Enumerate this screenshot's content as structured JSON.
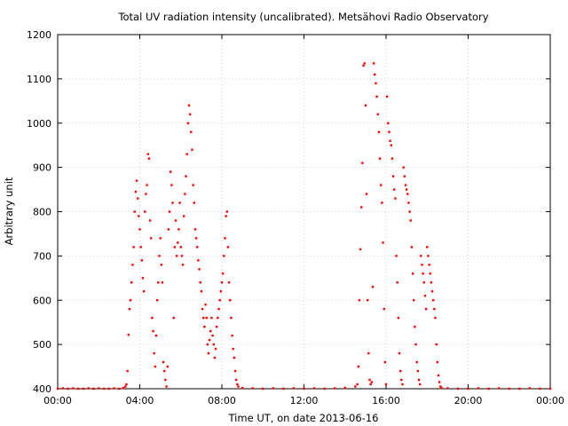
{
  "chart_data": {
    "type": "scatter",
    "title": "Total UV radiation intensity (uncalibrated). Metsähovi Radio Observatory",
    "xlabel": "Time UT, on date 2013-06-16",
    "ylabel": "Arbitrary unit",
    "x_unit": "hours UT",
    "xlim": [
      0,
      24
    ],
    "ylim": [
      400,
      1200
    ],
    "x_ticks": [
      0,
      4,
      8,
      12,
      16,
      20,
      24
    ],
    "x_tick_labels": [
      "00:00",
      "04:00",
      "08:00",
      "12:00",
      "16:00",
      "20:00",
      "00:00"
    ],
    "y_ticks": [
      400,
      500,
      600,
      700,
      800,
      900,
      1000,
      1100,
      1200
    ],
    "y_tick_labels": [
      "400",
      "500",
      "600",
      "700",
      "800",
      "900",
      "1000",
      "1100",
      "1200"
    ],
    "grid": true,
    "marker_color": "#ff0000",
    "series": [
      {
        "name": "",
        "points": [
          [
            0.0,
            400
          ],
          [
            0.25,
            401
          ],
          [
            0.5,
            400
          ],
          [
            0.75,
            401
          ],
          [
            1.0,
            400
          ],
          [
            1.25,
            400
          ],
          [
            1.5,
            401
          ],
          [
            1.75,
            400
          ],
          [
            2.0,
            401
          ],
          [
            2.25,
            400
          ],
          [
            2.5,
            400
          ],
          [
            2.75,
            401
          ],
          [
            3.0,
            400
          ],
          [
            3.2,
            402
          ],
          [
            3.3,
            405
          ],
          [
            3.35,
            410
          ],
          [
            3.4,
            440
          ],
          [
            3.45,
            522
          ],
          [
            3.5,
            580
          ],
          [
            3.55,
            600
          ],
          [
            3.6,
            640
          ],
          [
            3.65,
            680
          ],
          [
            3.7,
            720
          ],
          [
            3.75,
            800
          ],
          [
            3.8,
            845
          ],
          [
            3.85,
            870
          ],
          [
            3.9,
            830
          ],
          [
            3.95,
            790
          ],
          [
            4.0,
            760
          ],
          [
            4.05,
            720
          ],
          [
            4.1,
            690
          ],
          [
            4.15,
            650
          ],
          [
            4.2,
            620
          ],
          [
            4.25,
            800
          ],
          [
            4.3,
            840
          ],
          [
            4.35,
            860
          ],
          [
            4.4,
            930
          ],
          [
            4.45,
            920
          ],
          [
            4.5,
            780
          ],
          [
            4.55,
            740
          ],
          [
            4.6,
            560
          ],
          [
            4.65,
            530
          ],
          [
            4.7,
            480
          ],
          [
            4.75,
            450
          ],
          [
            4.8,
            520
          ],
          [
            4.85,
            600
          ],
          [
            4.9,
            640
          ],
          [
            4.95,
            700
          ],
          [
            5.0,
            740
          ],
          [
            5.05,
            680
          ],
          [
            5.1,
            640
          ],
          [
            5.15,
            460
          ],
          [
            5.2,
            440
          ],
          [
            5.25,
            420
          ],
          [
            5.3,
            405
          ],
          [
            5.35,
            450
          ],
          [
            5.4,
            760
          ],
          [
            5.45,
            800
          ],
          [
            5.5,
            890
          ],
          [
            5.55,
            860
          ],
          [
            5.6,
            820
          ],
          [
            5.65,
            560
          ],
          [
            5.7,
            720
          ],
          [
            5.75,
            780
          ],
          [
            5.8,
            700
          ],
          [
            5.85,
            730
          ],
          [
            5.9,
            760
          ],
          [
            5.95,
            820
          ],
          [
            6.0,
            720
          ],
          [
            6.05,
            700
          ],
          [
            6.1,
            680
          ],
          [
            6.15,
            790
          ],
          [
            6.2,
            840
          ],
          [
            6.25,
            880
          ],
          [
            6.3,
            930
          ],
          [
            6.35,
            1000
          ],
          [
            6.4,
            1040
          ],
          [
            6.45,
            1020
          ],
          [
            6.5,
            980
          ],
          [
            6.55,
            940
          ],
          [
            6.6,
            860
          ],
          [
            6.65,
            820
          ],
          [
            6.7,
            760
          ],
          [
            6.75,
            740
          ],
          [
            6.8,
            720
          ],
          [
            6.85,
            690
          ],
          [
            6.9,
            670
          ],
          [
            6.95,
            640
          ],
          [
            7.0,
            620
          ],
          [
            7.05,
            580
          ],
          [
            7.1,
            560
          ],
          [
            7.15,
            540
          ],
          [
            7.2,
            590
          ],
          [
            7.25,
            560
          ],
          [
            7.3,
            500
          ],
          [
            7.35,
            480
          ],
          [
            7.4,
            510
          ],
          [
            7.45,
            530
          ],
          [
            7.5,
            560
          ],
          [
            7.55,
            520
          ],
          [
            7.6,
            500
          ],
          [
            7.65,
            470
          ],
          [
            7.7,
            490
          ],
          [
            7.75,
            540
          ],
          [
            7.8,
            560
          ],
          [
            7.85,
            580
          ],
          [
            7.9,
            600
          ],
          [
            7.95,
            620
          ],
          [
            8.0,
            640
          ],
          [
            8.05,
            660
          ],
          [
            8.1,
            700
          ],
          [
            8.15,
            740
          ],
          [
            8.2,
            790
          ],
          [
            8.25,
            800
          ],
          [
            8.3,
            720
          ],
          [
            8.35,
            640
          ],
          [
            8.4,
            600
          ],
          [
            8.45,
            560
          ],
          [
            8.5,
            520
          ],
          [
            8.55,
            490
          ],
          [
            8.6,
            470
          ],
          [
            8.65,
            440
          ],
          [
            8.7,
            420
          ],
          [
            8.75,
            410
          ],
          [
            8.8,
            405
          ],
          [
            9.0,
            402
          ],
          [
            9.5,
            401
          ],
          [
            10.0,
            400
          ],
          [
            10.5,
            401
          ],
          [
            11.0,
            400
          ],
          [
            11.5,
            401
          ],
          [
            12.0,
            400
          ],
          [
            12.5,
            401
          ],
          [
            13.0,
            400
          ],
          [
            13.5,
            401
          ],
          [
            14.0,
            402
          ],
          [
            14.5,
            405
          ],
          [
            14.6,
            410
          ],
          [
            14.65,
            450
          ],
          [
            14.7,
            600
          ],
          [
            14.75,
            715
          ],
          [
            14.8,
            810
          ],
          [
            14.85,
            910
          ],
          [
            14.9,
            1130
          ],
          [
            14.95,
            1135
          ],
          [
            15.0,
            1040
          ],
          [
            15.05,
            840
          ],
          [
            15.1,
            600
          ],
          [
            15.15,
            480
          ],
          [
            15.2,
            420
          ],
          [
            15.25,
            410
          ],
          [
            15.3,
            415
          ],
          [
            15.35,
            630
          ],
          [
            15.4,
            1135
          ],
          [
            15.45,
            1110
          ],
          [
            15.5,
            1090
          ],
          [
            15.55,
            1060
          ],
          [
            15.6,
            1020
          ],
          [
            15.65,
            980
          ],
          [
            15.7,
            920
          ],
          [
            15.75,
            860
          ],
          [
            15.8,
            820
          ],
          [
            15.85,
            730
          ],
          [
            15.9,
            580
          ],
          [
            15.95,
            460
          ],
          [
            16.0,
            410
          ],
          [
            16.05,
            1060
          ],
          [
            16.1,
            1000
          ],
          [
            16.15,
            980
          ],
          [
            16.2,
            960
          ],
          [
            16.25,
            950
          ],
          [
            16.3,
            920
          ],
          [
            16.35,
            880
          ],
          [
            16.4,
            850
          ],
          [
            16.45,
            830
          ],
          [
            16.5,
            700
          ],
          [
            16.55,
            640
          ],
          [
            16.6,
            560
          ],
          [
            16.65,
            480
          ],
          [
            16.7,
            440
          ],
          [
            16.75,
            420
          ],
          [
            16.8,
            410
          ],
          [
            16.85,
            900
          ],
          [
            16.9,
            880
          ],
          [
            16.95,
            860
          ],
          [
            17.0,
            850
          ],
          [
            17.05,
            840
          ],
          [
            17.1,
            820
          ],
          [
            17.15,
            800
          ],
          [
            17.2,
            780
          ],
          [
            17.25,
            720
          ],
          [
            17.3,
            660
          ],
          [
            17.35,
            600
          ],
          [
            17.4,
            540
          ],
          [
            17.45,
            500
          ],
          [
            17.5,
            460
          ],
          [
            17.55,
            440
          ],
          [
            17.6,
            420
          ],
          [
            17.65,
            410
          ],
          [
            17.7,
            700
          ],
          [
            17.75,
            680
          ],
          [
            17.8,
            660
          ],
          [
            17.85,
            640
          ],
          [
            17.9,
            610
          ],
          [
            17.95,
            580
          ],
          [
            18.0,
            720
          ],
          [
            18.05,
            700
          ],
          [
            18.1,
            680
          ],
          [
            18.15,
            660
          ],
          [
            18.2,
            640
          ],
          [
            18.25,
            620
          ],
          [
            18.3,
            600
          ],
          [
            18.35,
            580
          ],
          [
            18.4,
            560
          ],
          [
            18.45,
            500
          ],
          [
            18.5,
            460
          ],
          [
            18.55,
            430
          ],
          [
            18.6,
            415
          ],
          [
            18.65,
            405
          ],
          [
            18.7,
            402
          ],
          [
            19.0,
            401
          ],
          [
            19.5,
            400
          ],
          [
            20.0,
            400
          ],
          [
            20.5,
            401
          ],
          [
            21.0,
            400
          ],
          [
            21.5,
            401
          ],
          [
            22.0,
            400
          ],
          [
            22.5,
            400
          ],
          [
            23.0,
            401
          ],
          [
            23.5,
            400
          ],
          [
            24.0,
            400
          ]
        ]
      }
    ]
  }
}
